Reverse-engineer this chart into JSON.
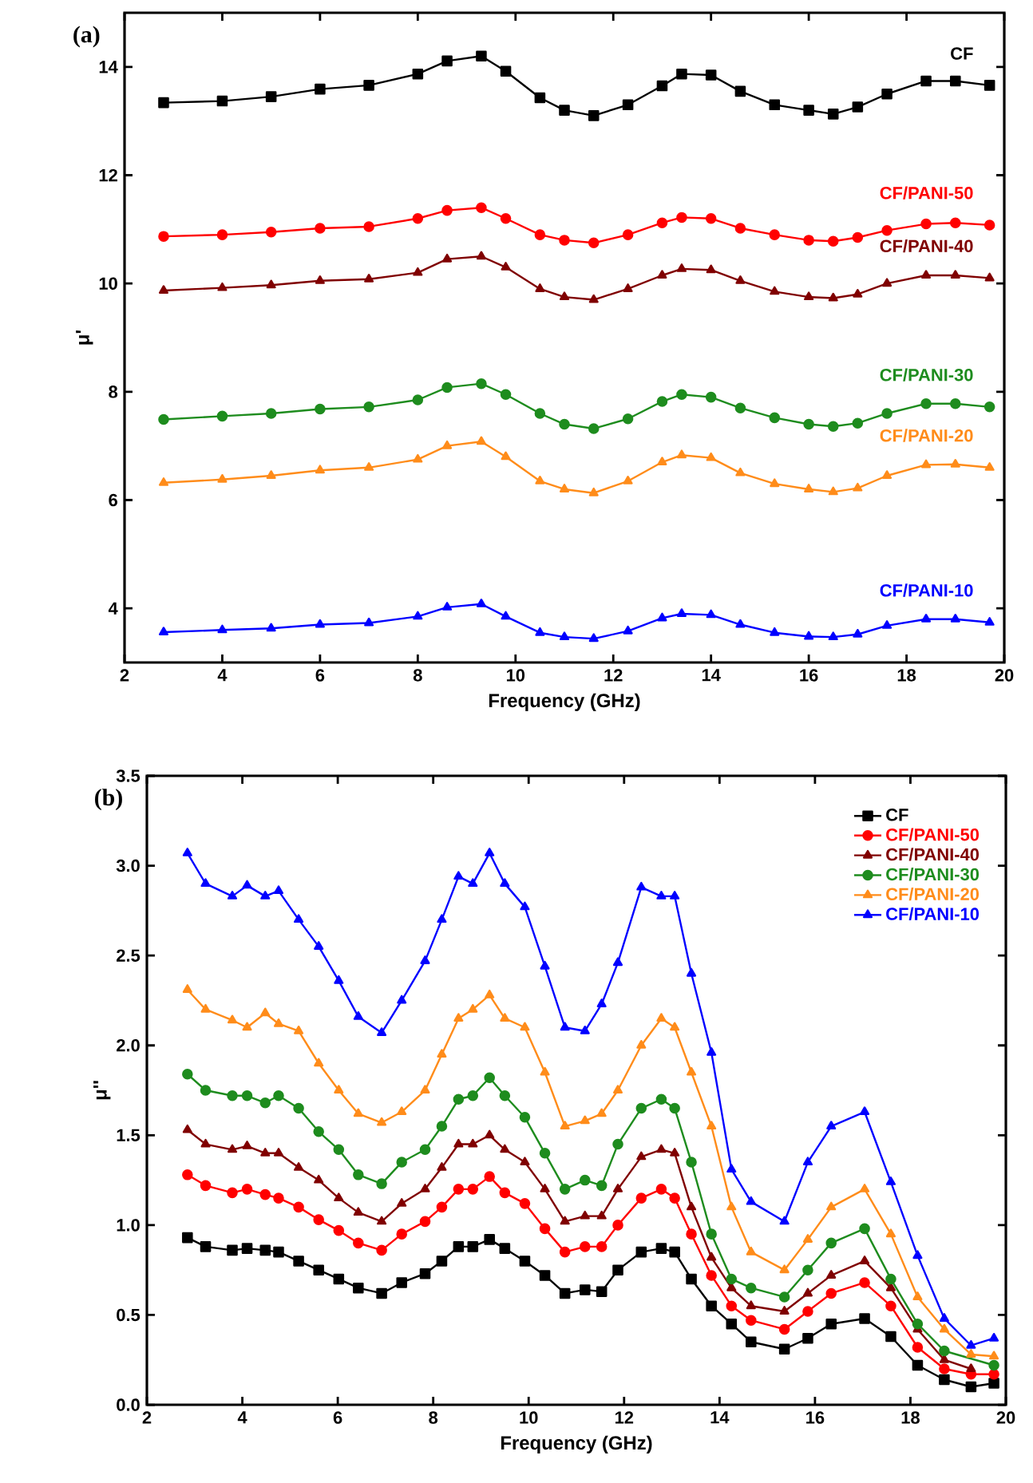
{
  "chart_data": [
    {
      "type": "line",
      "title": "(a)",
      "xlabel": "Frequency (GHz)",
      "ylabel": "μ'",
      "xlim": [
        2,
        20
      ],
      "ylim": [
        3,
        15
      ],
      "xticks": [
        2,
        4,
        6,
        8,
        10,
        12,
        14,
        16,
        18,
        20
      ],
      "yticks": [
        4,
        6,
        8,
        10,
        12,
        14
      ],
      "legend": "right",
      "grid": false,
      "x": [
        2.8,
        4,
        5,
        6,
        7,
        8,
        8.6,
        9.3,
        9.8,
        10.5,
        11,
        11.6,
        12.3,
        13,
        13.4,
        14,
        14.6,
        15.3,
        16,
        16.5,
        17,
        17.6,
        18.4,
        19,
        19.7
      ],
      "series": [
        {
          "name": "CF",
          "color": "#000000",
          "marker": "square",
          "values": [
            13.34,
            13.37,
            13.45,
            13.59,
            13.66,
            13.87,
            14.11,
            14.2,
            13.92,
            13.43,
            13.2,
            13.1,
            13.3,
            13.65,
            13.87,
            13.85,
            13.55,
            13.3,
            13.2,
            13.13,
            13.26,
            13.5,
            13.74,
            13.74,
            13.66
          ]
        },
        {
          "name": "CF/PANI-50",
          "color": "#ff0000",
          "marker": "circle",
          "values": [
            10.87,
            10.9,
            10.95,
            11.02,
            11.05,
            11.2,
            11.35,
            11.4,
            11.2,
            10.9,
            10.8,
            10.75,
            10.9,
            11.12,
            11.22,
            11.2,
            11.02,
            10.9,
            10.8,
            10.78,
            10.85,
            10.98,
            11.1,
            11.12,
            11.08
          ]
        },
        {
          "name": "CF/PANI-40",
          "color": "#800000",
          "marker": "triangle",
          "values": [
            9.87,
            9.92,
            9.97,
            10.05,
            10.08,
            10.2,
            10.45,
            10.5,
            10.3,
            9.9,
            9.75,
            9.7,
            9.9,
            10.15,
            10.27,
            10.25,
            10.05,
            9.85,
            9.75,
            9.73,
            9.8,
            10.0,
            10.15,
            10.15,
            10.1
          ]
        },
        {
          "name": "CF/PANI-30",
          "color": "#1e8c1e",
          "marker": "circle",
          "values": [
            7.49,
            7.55,
            7.6,
            7.68,
            7.72,
            7.85,
            8.08,
            8.15,
            7.95,
            7.6,
            7.4,
            7.32,
            7.5,
            7.82,
            7.95,
            7.9,
            7.7,
            7.52,
            7.4,
            7.36,
            7.42,
            7.6,
            7.78,
            7.78,
            7.72
          ]
        },
        {
          "name": "CF/PANI-20",
          "color": "#ff8c1a",
          "marker": "triangle",
          "values": [
            6.32,
            6.38,
            6.45,
            6.55,
            6.6,
            6.75,
            7.0,
            7.08,
            6.8,
            6.35,
            6.2,
            6.13,
            6.35,
            6.7,
            6.83,
            6.78,
            6.5,
            6.3,
            6.2,
            6.15,
            6.22,
            6.45,
            6.65,
            6.66,
            6.6
          ]
        },
        {
          "name": "CF/PANI-10",
          "color": "#0000ff",
          "marker": "triangle",
          "values": [
            3.56,
            3.6,
            3.63,
            3.7,
            3.73,
            3.85,
            4.02,
            4.08,
            3.85,
            3.55,
            3.47,
            3.44,
            3.58,
            3.82,
            3.9,
            3.88,
            3.7,
            3.55,
            3.48,
            3.47,
            3.52,
            3.68,
            3.8,
            3.8,
            3.74
          ]
        }
      ]
    },
    {
      "type": "line",
      "title": "(b)",
      "xlabel": "Frequency (GHz)",
      "ylabel": "μ''",
      "xlim": [
        2,
        20
      ],
      "ylim": [
        0,
        3.5
      ],
      "xticks": [
        2,
        4,
        6,
        8,
        10,
        12,
        14,
        16,
        18,
        20
      ],
      "yticks": [
        {
          "value": 0,
          "label": "0.0"
        },
        {
          "value": 0.5,
          "label": "0.5"
        },
        {
          "value": 1,
          "label": "1.0"
        },
        {
          "value": 1.5,
          "label": "1.5"
        },
        {
          "value": 2,
          "label": "2.0"
        },
        {
          "value": 2.5,
          "label": "2.5"
        },
        {
          "value": 3,
          "label": "3.0"
        },
        {
          "value": 3.5,
          "label": "3.5"
        }
      ],
      "legend": "top right",
      "grid": false,
      "x": [
        2.85,
        3.23,
        3.79,
        4.1,
        4.48,
        4.76,
        5.18,
        5.6,
        6.02,
        6.43,
        6.92,
        7.34,
        7.83,
        8.18,
        8.53,
        8.83,
        9.18,
        9.5,
        9.92,
        10.34,
        10.76,
        11.18,
        11.53,
        11.87,
        12.36,
        12.78,
        13.06,
        13.41,
        13.83,
        14.25,
        14.66,
        15.36,
        15.85,
        16.34,
        17.04,
        17.59,
        18.15,
        18.71,
        19.27,
        19.75
      ],
      "series": [
        {
          "name": "CF",
          "color": "#000000",
          "marker": "square",
          "values": [
            0.93,
            0.88,
            0.86,
            0.87,
            0.86,
            0.85,
            0.8,
            0.75,
            0.7,
            0.65,
            0.62,
            0.68,
            0.73,
            0.8,
            0.88,
            0.88,
            0.92,
            0.87,
            0.8,
            0.72,
            0.62,
            0.64,
            0.63,
            0.75,
            0.85,
            0.87,
            0.85,
            0.7,
            0.55,
            0.45,
            0.35,
            0.31,
            0.37,
            0.45,
            0.48,
            0.38,
            0.22,
            0.14,
            0.1,
            0.12
          ]
        },
        {
          "name": "CF/PANI-50",
          "color": "#ff0000",
          "marker": "circle",
          "values": [
            1.28,
            1.22,
            1.18,
            1.2,
            1.17,
            1.15,
            1.1,
            1.03,
            0.97,
            0.9,
            0.86,
            0.95,
            1.02,
            1.1,
            1.2,
            1.2,
            1.27,
            1.18,
            1.12,
            0.98,
            0.85,
            0.88,
            0.88,
            1.0,
            1.15,
            1.2,
            1.15,
            0.95,
            0.72,
            0.55,
            0.47,
            0.42,
            0.52,
            0.62,
            0.68,
            0.55,
            0.32,
            0.2,
            0.17,
            0.17
          ]
        },
        {
          "name": "CF/PANI-40",
          "color": "#800000",
          "marker": "triangle",
          "values": [
            1.53,
            1.45,
            1.42,
            1.44,
            1.4,
            1.4,
            1.32,
            1.25,
            1.15,
            1.07,
            1.02,
            1.12,
            1.2,
            1.32,
            1.45,
            1.45,
            1.5,
            1.42,
            1.35,
            1.2,
            1.02,
            1.05,
            1.05,
            1.2,
            1.38,
            1.42,
            1.4,
            1.1,
            0.82,
            0.65,
            0.55,
            0.52,
            0.62,
            0.72,
            0.8,
            0.65,
            0.42,
            0.25,
            0.2,
            null
          ]
        },
        {
          "name": "CF/PANI-30",
          "color": "#1e8c1e",
          "marker": "circle",
          "values": [
            1.84,
            1.75,
            1.72,
            1.72,
            1.68,
            1.72,
            1.65,
            1.52,
            1.42,
            1.28,
            1.23,
            1.35,
            1.42,
            1.55,
            1.7,
            1.72,
            1.82,
            1.72,
            1.6,
            1.4,
            1.2,
            1.25,
            1.22,
            1.45,
            1.65,
            1.7,
            1.65,
            1.35,
            0.95,
            0.7,
            0.65,
            0.6,
            0.75,
            0.9,
            0.98,
            0.7,
            0.45,
            0.3,
            null,
            0.22
          ]
        },
        {
          "name": "CF/PANI-20",
          "color": "#ff8c1a",
          "marker": "triangle",
          "values": [
            2.31,
            2.2,
            2.14,
            2.1,
            2.18,
            2.12,
            2.08,
            1.9,
            1.75,
            1.62,
            1.57,
            1.63,
            1.75,
            1.95,
            2.15,
            2.2,
            2.28,
            2.15,
            2.1,
            1.85,
            1.55,
            1.58,
            1.62,
            1.75,
            2.0,
            2.15,
            2.1,
            1.85,
            1.55,
            1.1,
            0.85,
            0.75,
            0.92,
            1.1,
            1.2,
            0.95,
            0.6,
            0.42,
            0.28,
            0.27
          ]
        },
        {
          "name": "CF/PANI-10",
          "color": "#0000ff",
          "marker": "triangle",
          "values": [
            3.07,
            2.9,
            2.83,
            2.89,
            2.83,
            2.86,
            2.7,
            2.55,
            2.36,
            2.16,
            2.07,
            2.25,
            2.47,
            2.7,
            2.94,
            2.9,
            3.07,
            2.9,
            2.77,
            2.44,
            2.1,
            2.08,
            2.23,
            2.46,
            2.88,
            2.83,
            2.83,
            2.4,
            1.96,
            1.31,
            1.13,
            1.02,
            1.35,
            1.55,
            1.63,
            1.24,
            0.83,
            0.48,
            0.33,
            0.37
          ]
        }
      ]
    }
  ]
}
